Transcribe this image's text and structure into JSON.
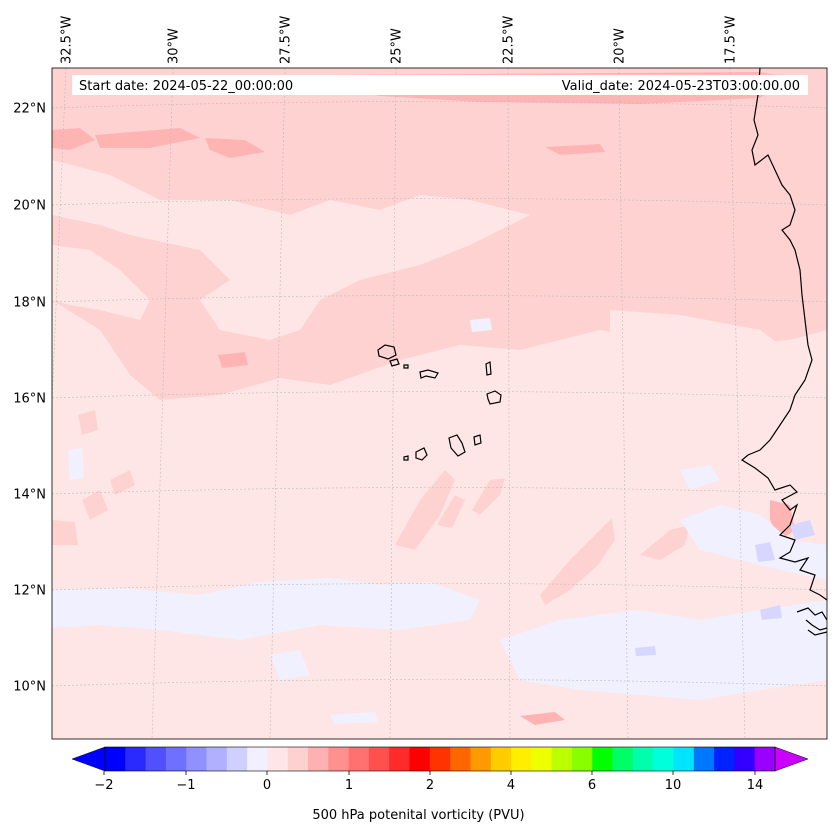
{
  "map": {
    "projection_extent": {
      "lon_min": -32.5,
      "lon_max": -16.0,
      "lat_min": 8.8,
      "lat_max": 22.8
    },
    "lon_ticks": [
      {
        "value": -32.5,
        "label": "32.5°W"
      },
      {
        "value": -30.0,
        "label": "30°W"
      },
      {
        "value": -27.5,
        "label": "27.5°W"
      },
      {
        "value": -25.0,
        "label": "25°W"
      },
      {
        "value": -22.5,
        "label": "22.5°W"
      },
      {
        "value": -20.0,
        "label": "20°W"
      },
      {
        "value": -17.5,
        "label": "17.5°W"
      }
    ],
    "lat_ticks": [
      {
        "value": 22,
        "label": "22°N"
      },
      {
        "value": 20,
        "label": "20°N"
      },
      {
        "value": 18,
        "label": "18°N"
      },
      {
        "value": 16,
        "label": "16°N"
      },
      {
        "value": 14,
        "label": "14°N"
      },
      {
        "value": 12,
        "label": "12°N"
      },
      {
        "value": 10,
        "label": "10°N"
      }
    ],
    "gridlines": true,
    "background_field_color": "#ffe6e6",
    "features": [
      "Cape Verde islands",
      "West African coastline"
    ]
  },
  "header": {
    "start_date": "Start date: 2024-05-22_00:00:00",
    "valid_date": "Valid_date: 2024-05-23T03:00:00.00"
  },
  "colorbar": {
    "label": "500 hPa potenital vorticity (PVU)",
    "tick_labels": [
      "−2",
      "−1",
      "0",
      "1",
      "2",
      "4",
      "6",
      "10",
      "14"
    ],
    "colors": [
      "#0000ff",
      "#2a2aff",
      "#5050ff",
      "#7070ff",
      "#9090ff",
      "#b0b0ff",
      "#d0d0ff",
      "#f0f0ff",
      "#ffe6e6",
      "#ffd0d0",
      "#ffb0b0",
      "#ff9090",
      "#ff7070",
      "#ff5050",
      "#ff2a2a",
      "#ff0000",
      "#ff3300",
      "#ff6600",
      "#ff9900",
      "#ffcc00",
      "#ffee00",
      "#eeff00",
      "#bbff00",
      "#88ff00",
      "#00ff00",
      "#00ff66",
      "#00ffaa",
      "#00ffdd",
      "#00e5ff",
      "#0077ff",
      "#0022ff",
      "#3300ff",
      "#9900ff"
    ],
    "extend_left_color": "#0000ff",
    "extend_right_color": "#cc00ff"
  },
  "chart_data": {
    "type": "heatmap",
    "title": "",
    "xlabel": "",
    "ylabel": "",
    "colorbar_label": "500 hPa potenital vorticity (PVU)",
    "colorbar_ticks": [
      -2,
      -1,
      0,
      1,
      2,
      4,
      6,
      10,
      14
    ],
    "xlim": [
      -32.5,
      -16.0
    ],
    "ylim": [
      8.8,
      22.8
    ]
  }
}
